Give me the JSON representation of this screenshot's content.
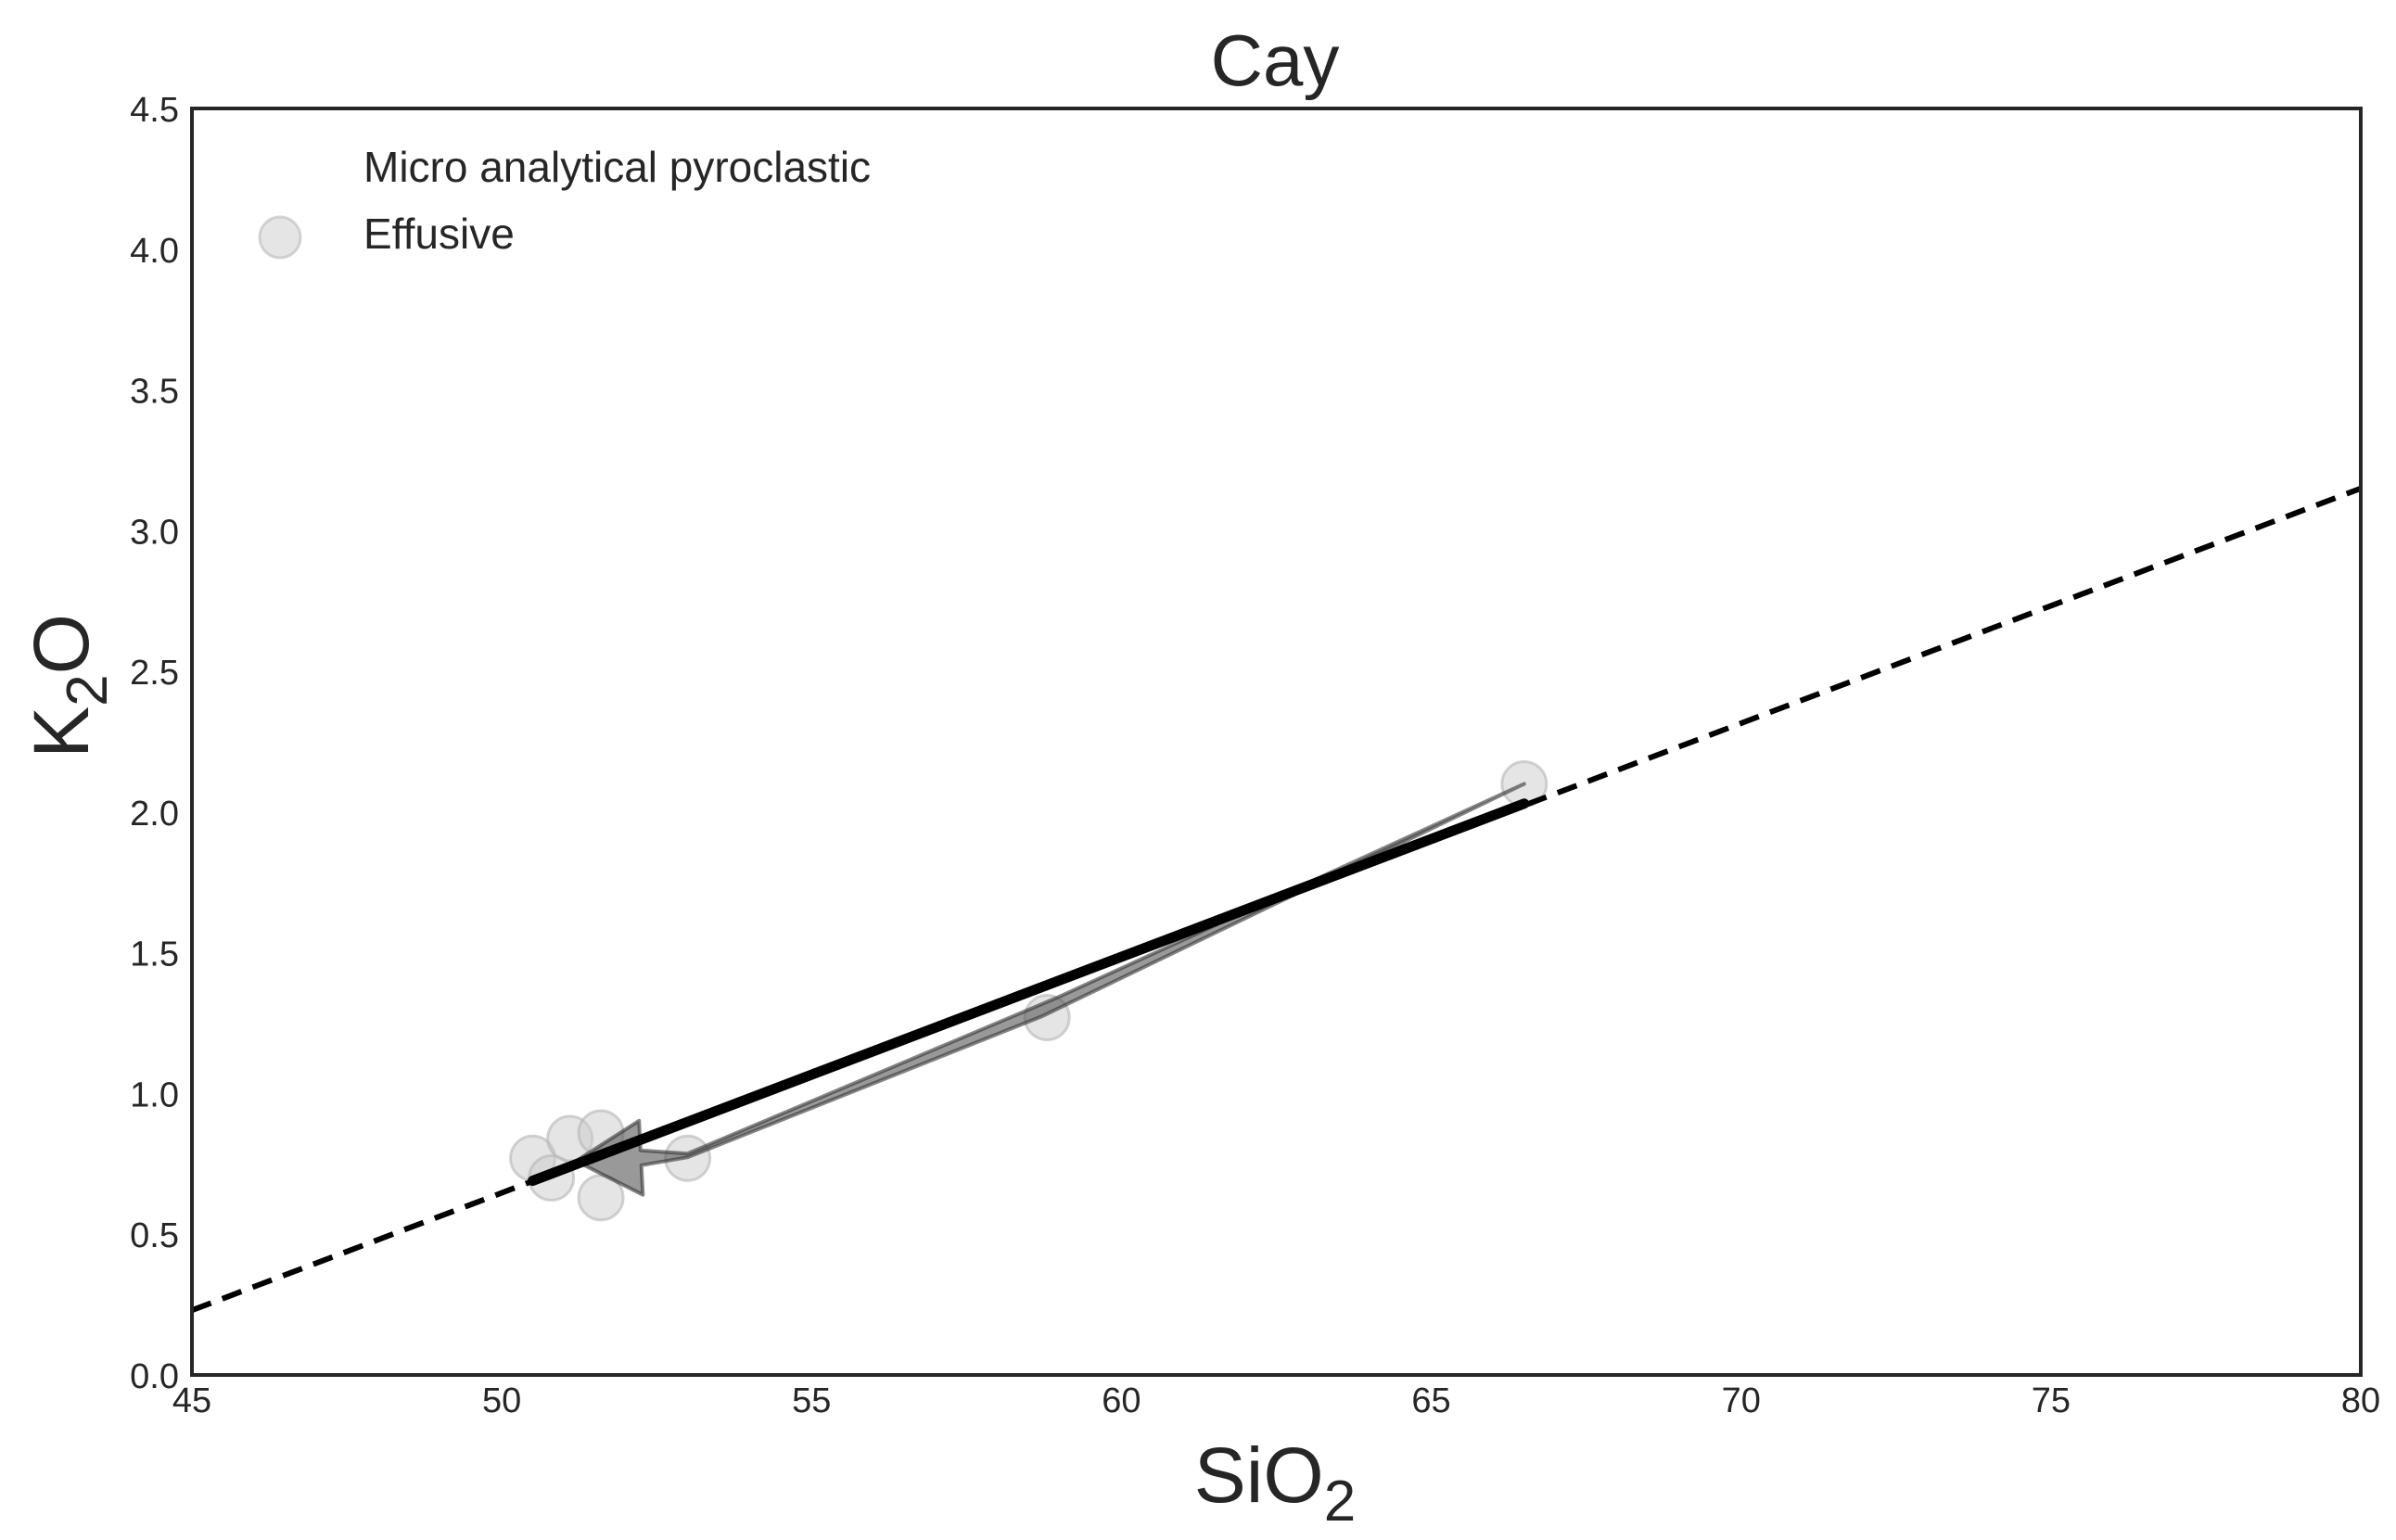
{
  "chart_data": {
    "type": "scatter",
    "title": "Cay",
    "xlabel": {
      "main": "SiO",
      "sub": "2"
    },
    "ylabel": {
      "main": "K",
      "sub": "2",
      "tail": "O"
    },
    "xlim": [
      45,
      80
    ],
    "ylim": [
      0,
      4.5
    ],
    "xticks": [
      "45",
      "50",
      "55",
      "60",
      "65",
      "70",
      "75",
      "80"
    ],
    "yticks": [
      "0.0",
      "0.5",
      "1.0",
      "1.5",
      "2.0",
      "2.5",
      "3.0",
      "3.5",
      "4.0",
      "4.5"
    ],
    "grid": false,
    "legend_position": "top-left",
    "legend": [
      {
        "name": "Micro analytical pyroclastic",
        "marker": "none"
      },
      {
        "name": "Effusive",
        "marker": "circle"
      }
    ],
    "series": [
      {
        "name": "Effusive",
        "type": "scatter",
        "color": "#cccccc",
        "points": [
          {
            "x": 50.5,
            "y": 0.77
          },
          {
            "x": 50.8,
            "y": 0.7
          },
          {
            "x": 51.1,
            "y": 0.84
          },
          {
            "x": 51.6,
            "y": 0.86
          },
          {
            "x": 51.6,
            "y": 0.63
          },
          {
            "x": 53.0,
            "y": 0.77
          },
          {
            "x": 58.8,
            "y": 1.27
          },
          {
            "x": 66.5,
            "y": 2.1
          }
        ]
      },
      {
        "type": "trend",
        "style": "solid",
        "color": "#000000",
        "x": [
          50.5,
          66.5
        ],
        "y": [
          0.69,
          2.03
        ]
      },
      {
        "type": "trend",
        "style": "dashed",
        "color": "#000000",
        "x": [
          45,
          80
        ],
        "y": [
          0.23,
          3.15
        ]
      },
      {
        "type": "arrow",
        "color": "#555555",
        "x": [
          66.5,
          58.8,
          53.0,
          51.2
        ],
        "y": [
          2.1,
          1.3,
          0.78,
          0.76
        ]
      }
    ]
  }
}
